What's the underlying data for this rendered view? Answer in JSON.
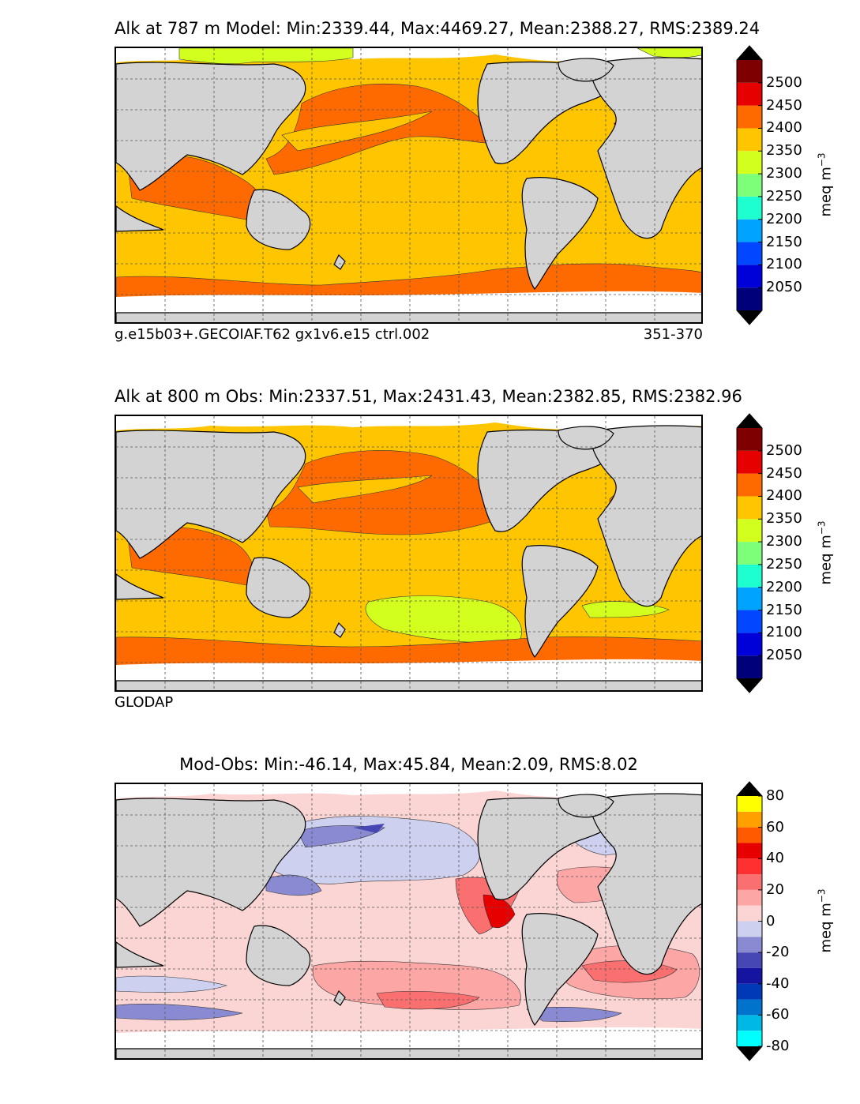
{
  "chart_data": [
    {
      "type": "heatmap",
      "subtype": "global-map-filled-contours",
      "title": "Alk at 787 m Model: Min:2339.44, Max:4469.27, Mean:2388.27, RMS:2389.24",
      "left_caption": "g.e15b03+.GECOIAF.T62 gx1v6.e15 ctrl.002",
      "right_caption": "351-370",
      "colorbar": {
        "label": "meq m",
        "label_exponent": "−3",
        "ticks": [
          "2050",
          "2100",
          "2150",
          "2200",
          "2250",
          "2300",
          "2350",
          "2400",
          "2450",
          "2500"
        ],
        "levels": [
          2000,
          2050,
          2100,
          2150,
          2200,
          2250,
          2300,
          2350,
          2400,
          2450,
          2500,
          2550
        ],
        "colors": [
          "#00007a",
          "#0000d9",
          "#0047ff",
          "#00a3ff",
          "#1effd0",
          "#7dff7a",
          "#d2ff1e",
          "#ffc600",
          "#ff6a00",
          "#e60000",
          "#7f0000"
        ],
        "extend_below_color": "#000000",
        "extend_above_color": "#000000"
      },
      "grid": true
    },
    {
      "type": "heatmap",
      "subtype": "global-map-filled-contours",
      "title": "Alk at 800 m Obs: Min:2337.51, Max:2431.43, Mean:2382.85, RMS:2382.96",
      "left_caption": "GLODAP",
      "colorbar": {
        "label": "meq m",
        "label_exponent": "−3",
        "ticks": [
          "2050",
          "2100",
          "2150",
          "2200",
          "2250",
          "2300",
          "2350",
          "2400",
          "2450",
          "2500"
        ],
        "levels": [
          2000,
          2050,
          2100,
          2150,
          2200,
          2250,
          2300,
          2350,
          2400,
          2450,
          2500,
          2550
        ],
        "colors": [
          "#00007a",
          "#0000d9",
          "#0047ff",
          "#00a3ff",
          "#1effd0",
          "#7dff7a",
          "#d2ff1e",
          "#ffc600",
          "#ff6a00",
          "#e60000",
          "#7f0000"
        ],
        "extend_below_color": "#000000",
        "extend_above_color": "#000000"
      },
      "grid": true
    },
    {
      "type": "heatmap",
      "subtype": "global-map-filled-contours",
      "title": "Mod-Obs: Min:-46.14, Max:45.84, Mean:2.09, RMS:8.02",
      "colorbar": {
        "label": "meq m",
        "label_exponent": "−3",
        "ticks": [
          "-80",
          "-60",
          "-40",
          "-20",
          "0",
          "20",
          "40",
          "60",
          "80"
        ],
        "levels": [
          -80,
          -70,
          -60,
          -50,
          -40,
          -30,
          -20,
          -10,
          0,
          10,
          20,
          30,
          40,
          50,
          60,
          70,
          80
        ],
        "colors": [
          "#00ffff",
          "#00b8e6",
          "#0073cc",
          "#0039b8",
          "#1414a0",
          "#4646b4",
          "#8a8ad2",
          "#cdd0ee",
          "#fbd4d4",
          "#fca6a6",
          "#fa7070",
          "#ff3030",
          "#e60000",
          "#ff5a00",
          "#ffa000",
          "#ffff00"
        ],
        "extend_below_color": "#000000",
        "extend_above_color": "#000000"
      },
      "grid": true
    }
  ]
}
